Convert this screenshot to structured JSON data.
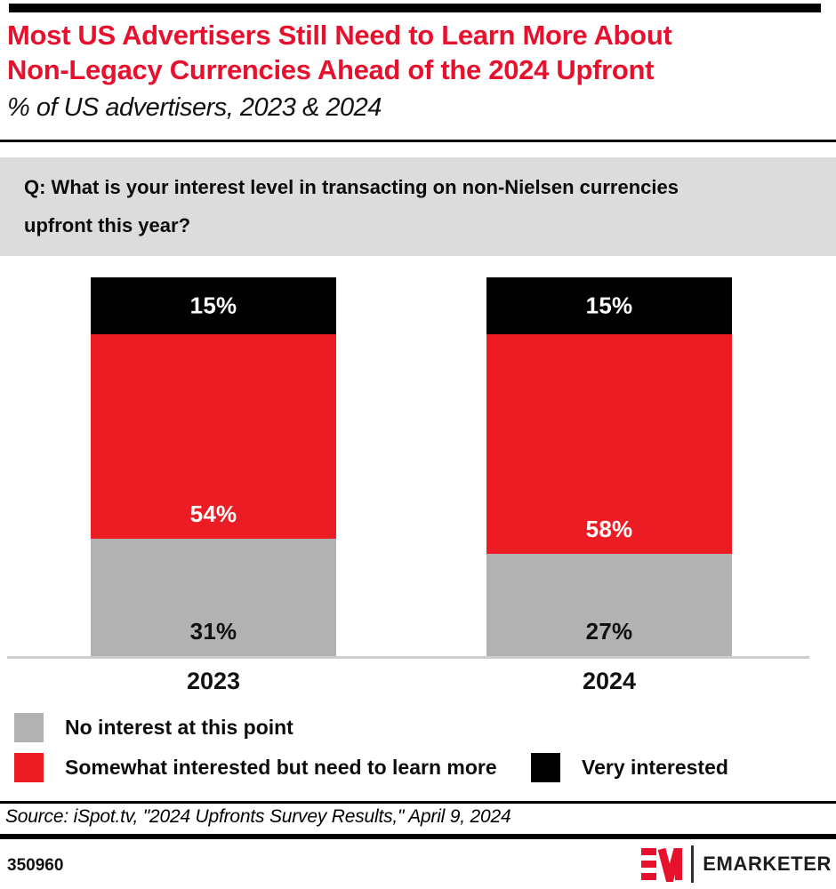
{
  "page": {
    "background": "#ffffff",
    "accent_red": "#e8112d"
  },
  "header": {
    "title_line1": "Most US Advertisers Still Need to Learn More About",
    "title_line2": "Non-Legacy Currencies Ahead of the 2024 Upfront",
    "subtitle": "% of US advertisers, 2023 & 2024"
  },
  "question": {
    "line1": "Q: What is your interest level in transacting on non-Nielsen currencies",
    "line2": "upfront this year?"
  },
  "chart_data": {
    "type": "bar",
    "stacked": true,
    "title": "Most US Advertisers Still Need to Learn More About Non-Legacy Currencies Ahead of the 2024 Upfront",
    "subtitle": "% of US advertisers, 2023 & 2024",
    "question": "Q: What is your interest level in transacting on non-Nielsen currencies upfront this year?",
    "categories": [
      "2023",
      "2024"
    ],
    "series": [
      {
        "name": "No interest at this point",
        "values": [
          31,
          27
        ],
        "color": "#b2b2b2",
        "label_color": "#111111",
        "label_position": "bottom"
      },
      {
        "name": "Somewhat interested but need to learn more",
        "values": [
          54,
          58
        ],
        "color": "#ec1c24",
        "label_color": "#ffffff",
        "label_position": "bottom"
      },
      {
        "name": "Very interested",
        "values": [
          15,
          15
        ],
        "color": "#000000",
        "label_color": "#ffffff",
        "label_position": "center"
      }
    ],
    "value_suffix": "%",
    "ylim": [
      0,
      100
    ],
    "grid": false,
    "legend_position": "bottom"
  },
  "source": "Source: iSpot.tv, \"2024 Upfronts Survey Results,\" April 9, 2024",
  "footer": {
    "chart_id": "350960",
    "brand": "EMARKETER"
  }
}
